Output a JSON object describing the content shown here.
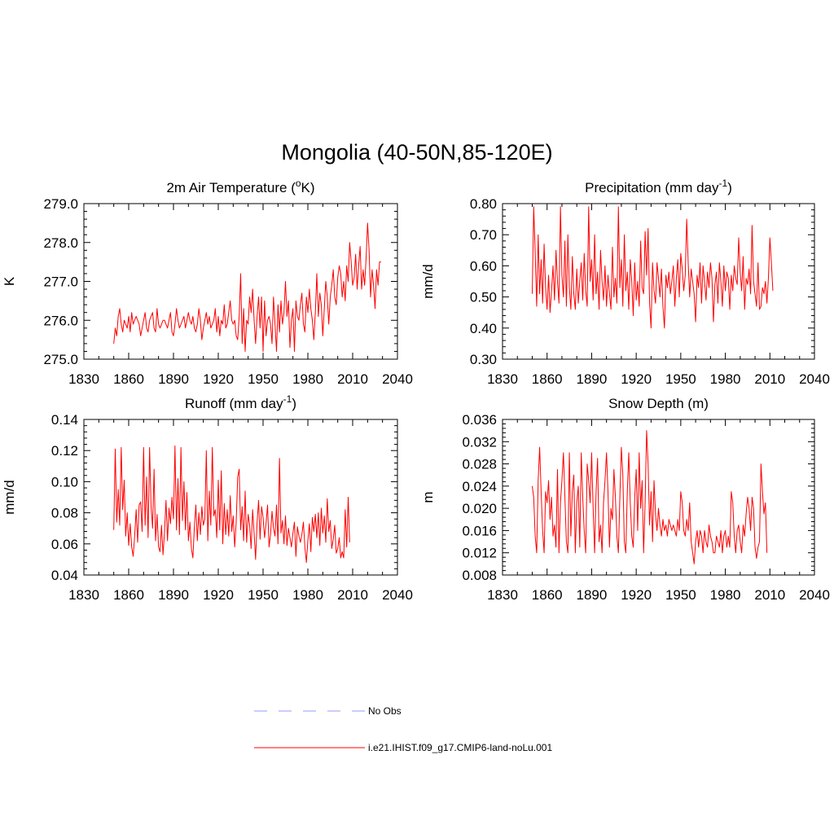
{
  "figure": {
    "title": "Mongolia (40-50N,85-120E)"
  },
  "legend": {
    "items": [
      {
        "label": "No Obs",
        "color": "#9999ff",
        "dashed": true
      },
      {
        "label": "i.e21.IHIST.f09_g17.CMIP6-land-noLu.001",
        "color": "#ff0000",
        "dashed": false
      }
    ]
  },
  "chart_data": [
    {
      "type": "line",
      "title": "2m Air Temperature (°K)",
      "title_main": "2m Air Temperature (",
      "title_sup": "o",
      "title_after": "K)",
      "ylabel": "K",
      "xlim": [
        1830,
        2040
      ],
      "ylim": [
        275.0,
        279.0
      ],
      "xticks": [
        1830,
        1860,
        1890,
        1920,
        1950,
        1980,
        2010,
        2040
      ],
      "yticks": [
        275.0,
        276.0,
        277.0,
        278.0,
        279.0
      ],
      "ytick_labels": [
        "275.0",
        "276.0",
        "277.0",
        "278.0",
        "279.0"
      ],
      "x_start": 1850,
      "series": [
        {
          "color": "#ff0000",
          "values": [
            275.4,
            275.8,
            275.6,
            276.1,
            276.3,
            275.9,
            275.7,
            276.0,
            275.9,
            275.8,
            276.1,
            275.7,
            276.2,
            275.9,
            276.0,
            276.1,
            276.0,
            275.9,
            275.6,
            275.8,
            276.0,
            276.2,
            275.8,
            275.7,
            276.0,
            276.1,
            276.2,
            275.8,
            275.7,
            276.3,
            275.9,
            275.8,
            275.9,
            276.0,
            276.0,
            275.9,
            275.8,
            276.0,
            276.2,
            275.7,
            275.6,
            275.9,
            276.3,
            276.0,
            275.8,
            275.9,
            276.0,
            276.1,
            275.8,
            276.0,
            276.2,
            276.0,
            275.9,
            276.1,
            275.8,
            275.7,
            275.9,
            276.3,
            276.0,
            275.5,
            275.8,
            276.0,
            276.2,
            275.9,
            276.1,
            275.8,
            275.9,
            276.0,
            276.3,
            275.7,
            276.1,
            275.6,
            276.0,
            275.9,
            276.4,
            275.8,
            275.9,
            276.2,
            276.5,
            276.0,
            275.9,
            276.0,
            275.6,
            275.5,
            276.1,
            277.2,
            275.4,
            276.3,
            275.2,
            276.0,
            275.9,
            276.6,
            276.2,
            276.8,
            276.0,
            275.4,
            276.1,
            276.6,
            275.8,
            276.6,
            275.2,
            276.5,
            275.6,
            276.0,
            276.1,
            275.9,
            275.4,
            276.6,
            275.9,
            275.2,
            276.4,
            275.7,
            276.5,
            275.9,
            276.2,
            277.0,
            276.1,
            276.5,
            275.3,
            276.0,
            276.3,
            275.2,
            276.5,
            276.1,
            276.0,
            276.4,
            276.7,
            275.9,
            275.7,
            276.6,
            276.2,
            276.8,
            276.3,
            276.0,
            275.5,
            276.2,
            277.2,
            276.1,
            276.7,
            276.4,
            275.6,
            276.3,
            277.0,
            276.6,
            275.9,
            276.6,
            276.9,
            277.3,
            276.6,
            276.4,
            277.1,
            277.4,
            277.2,
            276.6,
            277.0,
            276.5,
            277.4,
            277.0,
            278.0,
            277.5,
            276.9,
            277.1,
            277.7,
            276.8,
            277.4,
            277.9,
            276.8,
            277.3,
            276.9,
            277.6,
            278.5,
            277.8,
            276.6,
            277.3,
            276.9,
            276.3,
            277.3,
            276.9,
            277.5,
            277.5
          ]
        }
      ]
    },
    {
      "type": "line",
      "title": "Precipitation (mm day-1)",
      "title_main": "Precipitation (mm day",
      "title_sup": "-1",
      "title_after": ")",
      "ylabel": "mm/d",
      "xlim": [
        1830,
        2040
      ],
      "ylim": [
        0.3,
        0.8
      ],
      "xticks": [
        1830,
        1860,
        1890,
        1920,
        1950,
        1980,
        2010,
        2040
      ],
      "yticks": [
        0.3,
        0.4,
        0.5,
        0.6,
        0.7,
        0.8
      ],
      "ytick_labels": [
        "0.30",
        "0.40",
        "0.50",
        "0.60",
        "0.70",
        "0.80"
      ],
      "x_start": 1850,
      "series": [
        {
          "color": "#ff0000",
          "values": [
            0.51,
            0.79,
            0.64,
            0.47,
            0.7,
            0.51,
            0.62,
            0.48,
            0.67,
            0.53,
            0.46,
            0.57,
            0.45,
            0.52,
            0.6,
            0.49,
            0.65,
            0.55,
            0.48,
            0.79,
            0.57,
            0.5,
            0.68,
            0.47,
            0.7,
            0.53,
            0.46,
            0.63,
            0.51,
            0.46,
            0.59,
            0.48,
            0.55,
            0.61,
            0.49,
            0.64,
            0.52,
            0.47,
            0.79,
            0.55,
            0.62,
            0.49,
            0.7,
            0.51,
            0.58,
            0.46,
            0.65,
            0.55,
            0.49,
            0.6,
            0.47,
            0.57,
            0.51,
            0.46,
            0.66,
            0.5,
            0.56,
            0.48,
            0.79,
            0.53,
            0.62,
            0.47,
            0.7,
            0.52,
            0.58,
            0.46,
            0.62,
            0.55,
            0.44,
            0.61,
            0.49,
            0.55,
            0.47,
            0.68,
            0.53,
            0.51,
            0.71,
            0.57,
            0.72,
            0.48,
            0.4,
            0.61,
            0.52,
            0.48,
            0.61,
            0.56,
            0.5,
            0.59,
            0.47,
            0.4,
            0.57,
            0.53,
            0.58,
            0.51,
            0.55,
            0.6,
            0.47,
            0.56,
            0.62,
            0.5,
            0.64,
            0.59,
            0.52,
            0.57,
            0.75,
            0.61,
            0.5,
            0.59,
            0.55,
            0.51,
            0.42,
            0.57,
            0.53,
            0.61,
            0.48,
            0.6,
            0.55,
            0.49,
            0.58,
            0.53,
            0.61,
            0.56,
            0.42,
            0.54,
            0.58,
            0.48,
            0.61,
            0.55,
            0.47,
            0.6,
            0.52,
            0.58,
            0.56,
            0.46,
            0.57,
            0.52,
            0.6,
            0.56,
            0.54,
            0.69,
            0.58,
            0.52,
            0.63,
            0.46,
            0.56,
            0.54,
            0.59,
            0.51,
            0.73,
            0.55,
            0.51,
            0.47,
            0.61,
            0.46,
            0.47,
            0.53,
            0.51,
            0.55,
            0.48,
            0.56,
            0.69,
            0.61,
            0.52
          ]
        }
      ]
    },
    {
      "type": "line",
      "title": "Runoff (mm day-1)",
      "title_main": "Runoff (mm day",
      "title_sup": "-1",
      "title_after": ")",
      "ylabel": "mm/d",
      "xlim": [
        1830,
        2040
      ],
      "ylim": [
        0.04,
        0.14
      ],
      "xticks": [
        1830,
        1860,
        1890,
        1920,
        1950,
        1980,
        2010,
        2040
      ],
      "yticks": [
        0.04,
        0.06,
        0.08,
        0.1,
        0.12,
        0.14
      ],
      "ytick_labels": [
        "0.04",
        "0.06",
        "0.08",
        "0.10",
        "0.12",
        "0.14"
      ],
      "x_start": 1850,
      "series": [
        {
          "color": "#ff0000",
          "values": [
            0.069,
            0.121,
            0.074,
            0.095,
            0.072,
            0.122,
            0.082,
            0.101,
            0.065,
            0.08,
            0.059,
            0.073,
            0.058,
            0.052,
            0.065,
            0.082,
            0.061,
            0.085,
            0.087,
            0.068,
            0.122,
            0.072,
            0.103,
            0.064,
            0.122,
            0.084,
            0.07,
            0.108,
            0.062,
            0.079,
            0.058,
            0.055,
            0.072,
            0.053,
            0.068,
            0.088,
            0.062,
            0.083,
            0.073,
            0.09,
            0.076,
            0.123,
            0.069,
            0.102,
            0.066,
            0.122,
            0.075,
            0.1,
            0.069,
            0.093,
            0.062,
            0.074,
            0.057,
            0.051,
            0.071,
            0.085,
            0.062,
            0.08,
            0.066,
            0.084,
            0.072,
            0.076,
            0.12,
            0.062,
            0.094,
            0.072,
            0.122,
            0.078,
            0.082,
            0.064,
            0.101,
            0.069,
            0.107,
            0.06,
            0.086,
            0.066,
            0.082,
            0.065,
            0.091,
            0.068,
            0.078,
            0.058,
            0.074,
            0.103,
            0.108,
            0.069,
            0.084,
            0.062,
            0.094,
            0.061,
            0.079,
            0.072,
            0.057,
            0.082,
            0.067,
            0.05,
            0.074,
            0.088,
            0.063,
            0.084,
            0.077,
            0.064,
            0.073,
            0.085,
            0.058,
            0.066,
            0.081,
            0.07,
            0.065,
            0.085,
            0.06,
            0.115,
            0.067,
            0.075,
            0.06,
            0.078,
            0.059,
            0.07,
            0.064,
            0.058,
            0.067,
            0.074,
            0.052,
            0.071,
            0.065,
            0.061,
            0.066,
            0.074,
            0.058,
            0.048,
            0.062,
            0.073,
            0.055,
            0.077,
            0.068,
            0.079,
            0.064,
            0.08,
            0.059,
            0.083,
            0.067,
            0.078,
            0.061,
            0.089,
            0.068,
            0.075,
            0.057,
            0.063,
            0.072,
            0.054,
            0.057,
            0.064,
            0.051,
            0.055,
            0.051,
            0.082,
            0.058,
            0.09,
            0.061
          ]
        }
      ]
    },
    {
      "type": "line",
      "title": "Snow Depth (m)",
      "title_main": "Snow Depth (m)",
      "title_sup": "",
      "title_after": "",
      "ylabel": "m",
      "xlim": [
        1830,
        2040
      ],
      "ylim": [
        0.008,
        0.036
      ],
      "xticks": [
        1830,
        1860,
        1890,
        1920,
        1950,
        1980,
        2010,
        2040
      ],
      "yticks": [
        0.008,
        0.012,
        0.016,
        0.02,
        0.024,
        0.028,
        0.032,
        0.036
      ],
      "ytick_labels": [
        "0.008",
        "0.012",
        "0.016",
        "0.020",
        "0.024",
        "0.028",
        "0.032",
        "0.036"
      ],
      "x_start": 1850,
      "series": [
        {
          "color": "#ff0000",
          "values": [
            0.024,
            0.022,
            0.015,
            0.012,
            0.025,
            0.031,
            0.023,
            0.016,
            0.012,
            0.023,
            0.021,
            0.025,
            0.018,
            0.022,
            0.015,
            0.017,
            0.013,
            0.027,
            0.012,
            0.021,
            0.025,
            0.03,
            0.022,
            0.014,
            0.012,
            0.03,
            0.015,
            0.023,
            0.026,
            0.012,
            0.021,
            0.024,
            0.013,
            0.03,
            0.022,
            0.016,
            0.012,
            0.028,
            0.025,
            0.021,
            0.03,
            0.02,
            0.012,
            0.023,
            0.029,
            0.014,
            0.017,
            0.012,
            0.021,
            0.025,
            0.03,
            0.023,
            0.013,
            0.02,
            0.018,
            0.027,
            0.022,
            0.015,
            0.012,
            0.022,
            0.031,
            0.026,
            0.014,
            0.012,
            0.023,
            0.03,
            0.021,
            0.015,
            0.013,
            0.022,
            0.027,
            0.016,
            0.03,
            0.02,
            0.025,
            0.012,
            0.021,
            0.034,
            0.028,
            0.017,
            0.023,
            0.014,
            0.025,
            0.019,
            0.016,
            0.02,
            0.017,
            0.015,
            0.018,
            0.016,
            0.017,
            0.015,
            0.018,
            0.017,
            0.016,
            0.017,
            0.016,
            0.015,
            0.018,
            0.016,
            0.023,
            0.021,
            0.016,
            0.015,
            0.018,
            0.016,
            0.021,
            0.014,
            0.012,
            0.01,
            0.014,
            0.016,
            0.013,
            0.016,
            0.015,
            0.012,
            0.016,
            0.014,
            0.013,
            0.017,
            0.015,
            0.014,
            0.012,
            0.012,
            0.015,
            0.014,
            0.013,
            0.016,
            0.012,
            0.015,
            0.016,
            0.013,
            0.015,
            0.013,
            0.023,
            0.021,
            0.015,
            0.012,
            0.016,
            0.017,
            0.014,
            0.012,
            0.017,
            0.015,
            0.019,
            0.022,
            0.02,
            0.016,
            0.022,
            0.02,
            0.013,
            0.011,
            0.013,
            0.014,
            0.028,
            0.023,
            0.019,
            0.021,
            0.012
          ]
        }
      ]
    }
  ]
}
